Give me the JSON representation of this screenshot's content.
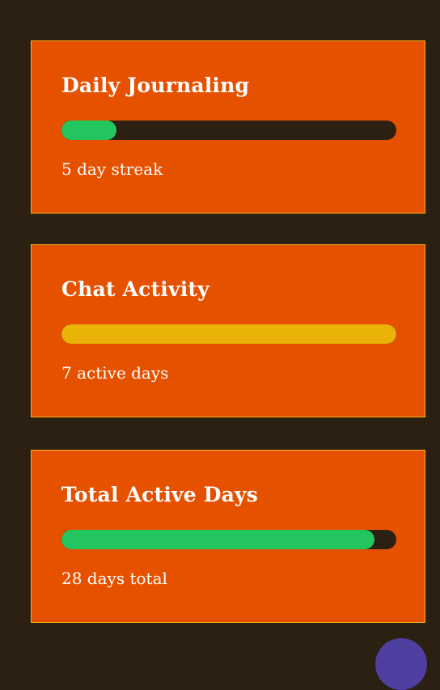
{
  "cards": [
    {
      "title": "Daily Journaling",
      "caption": "5 day streak",
      "progress": 0.165,
      "bar_color": "#22c55e"
    },
    {
      "title": "Chat Activity",
      "caption": "7 active days",
      "progress": 1.0,
      "bar_color": "#eab308"
    },
    {
      "title": "Total Active Days",
      "caption": "28 days total",
      "progress": 0.935,
      "bar_color": "#22c55e"
    }
  ]
}
